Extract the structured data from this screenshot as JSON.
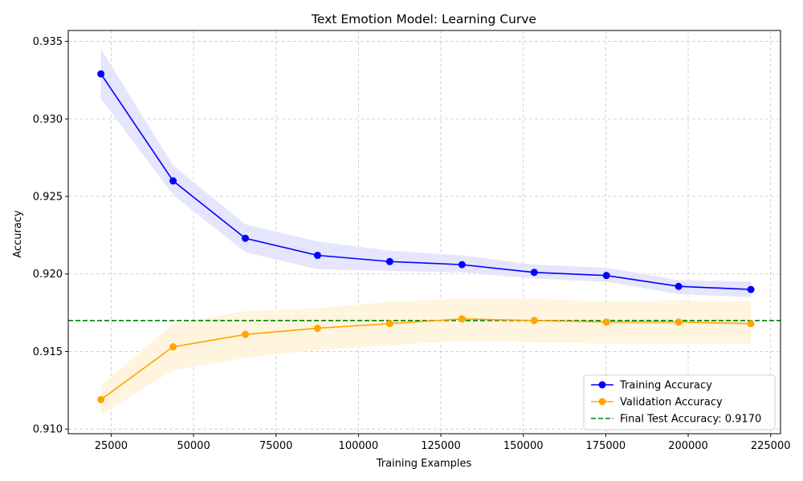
{
  "chart_data": {
    "type": "line",
    "title": "Text Emotion Model: Learning Curve",
    "xlabel": "Training Examples",
    "ylabel": "Accuracy",
    "xlim": [
      12000,
      228000
    ],
    "ylim": [
      0.9097,
      0.9357
    ],
    "xticks": [
      25000,
      50000,
      75000,
      100000,
      125000,
      150000,
      175000,
      200000,
      225000
    ],
    "yticks": [
      0.91,
      0.915,
      0.92,
      0.925,
      0.93,
      0.935
    ],
    "ytick_labels": [
      "0.910",
      "0.915",
      "0.920",
      "0.925",
      "0.930",
      "0.935"
    ],
    "grid": true,
    "legend_position": "lower-right",
    "x": [
      21900,
      43800,
      65700,
      87600,
      109500,
      131400,
      153300,
      175200,
      197100,
      219000
    ],
    "series": [
      {
        "name": "Training Accuracy",
        "color": "#0000ff",
        "band_color": "#e5e5fd",
        "marker": "circle",
        "values": [
          0.9329,
          0.926,
          0.9223,
          0.9212,
          0.9208,
          0.9206,
          0.9201,
          0.9199,
          0.9192,
          0.919
        ],
        "band_low": [
          0.9313,
          0.9251,
          0.9214,
          0.9203,
          0.9202,
          0.9201,
          0.9197,
          0.9195,
          0.9187,
          0.9185
        ],
        "band_high": [
          0.9345,
          0.927,
          0.9232,
          0.9221,
          0.9215,
          0.9212,
          0.9206,
          0.9204,
          0.9196,
          0.9195
        ]
      },
      {
        "name": "Validation Accuracy",
        "color": "#ffa500",
        "band_color": "#fff4dd",
        "marker": "circle",
        "values": [
          0.9119,
          0.9153,
          0.9161,
          0.9165,
          0.9168,
          0.9171,
          0.917,
          0.9169,
          0.9169,
          0.9168
        ],
        "band_low": [
          0.9109,
          0.9138,
          0.9146,
          0.9151,
          0.9154,
          0.9157,
          0.9156,
          0.9155,
          0.9155,
          0.9155
        ],
        "band_high": [
          0.9128,
          0.9168,
          0.9176,
          0.9178,
          0.9182,
          0.9184,
          0.9184,
          0.9182,
          0.9183,
          0.9182
        ]
      }
    ],
    "reference_lines": [
      {
        "name": "Final Test Accuracy: 0.9170",
        "value": 0.917,
        "color": "#008000",
        "style": "dashed"
      }
    ]
  }
}
